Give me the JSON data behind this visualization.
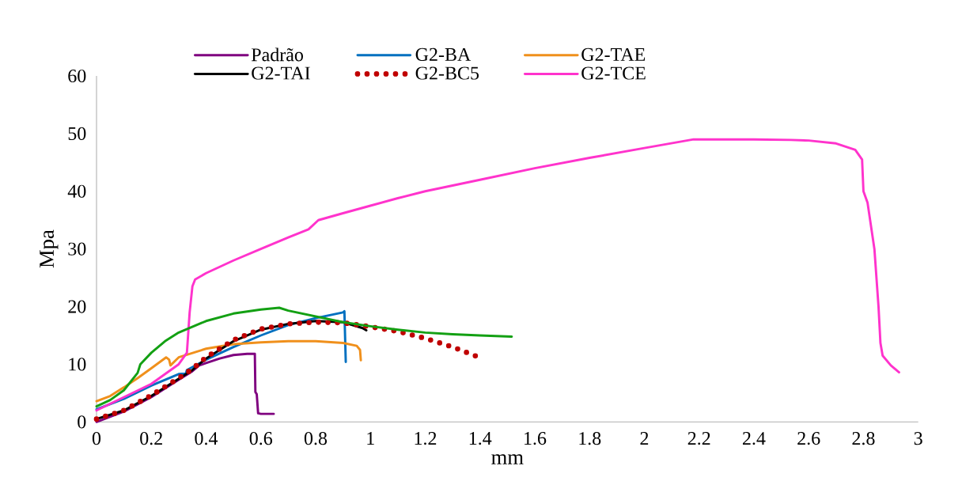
{
  "chart_data": {
    "type": "line",
    "xlabel": "mm",
    "ylabel": "Mpa",
    "xlim": [
      0,
      3
    ],
    "xticks": [
      0,
      0.2,
      0.4,
      0.6,
      0.8,
      1,
      1.2,
      1.4,
      1.6,
      1.8,
      2,
      2.2,
      2.4,
      2.6,
      2.8,
      3
    ],
    "ylim": [
      0,
      60
    ],
    "yticks": [
      0,
      10,
      20,
      30,
      40,
      50,
      60
    ],
    "grid": false,
    "legend": "top",
    "marker": "none",
    "line_style": "solid",
    "series": [
      {
        "name": "Padrão",
        "color": "#7f007f",
        "x": [
          0,
          0.1,
          0.2,
          0.3,
          0.35,
          0.375,
          0.4,
          0.45,
          0.5,
          0.55,
          0.578,
          0.58,
          0.585,
          0.59,
          0.6,
          0.647
        ],
        "values": [
          0,
          1.8,
          4.3,
          7.3,
          8.8,
          9.8,
          10.2,
          11,
          11.6,
          11.8,
          11.8,
          5.2,
          4.8,
          1.5,
          1.4,
          1.4
        ]
      },
      {
        "name": "G2-BA",
        "color": "#0070c0",
        "x": [
          0,
          0.1,
          0.2,
          0.3,
          0.326,
          0.33,
          0.4,
          0.5,
          0.6,
          0.7,
          0.8,
          0.9,
          0.905,
          0.91
        ],
        "values": [
          2.2,
          4,
          6.3,
          8.3,
          8.4,
          9,
          10.8,
          13,
          15,
          16.8,
          18,
          19,
          19.2,
          10.4
        ]
      },
      {
        "name": "G2-TAE",
        "color": "#f0901c",
        "x": [
          0,
          0.05,
          0.1,
          0.15,
          0.2,
          0.254,
          0.265,
          0.27,
          0.3,
          0.4,
          0.5,
          0.6,
          0.7,
          0.8,
          0.9,
          0.95,
          0.962,
          0.965
        ],
        "values": [
          3.6,
          4.5,
          6,
          7.6,
          9.3,
          11.2,
          10.8,
          9.8,
          11.2,
          12.7,
          13.5,
          13.8,
          14,
          14,
          13.7,
          13.2,
          12.5,
          10.7
        ]
      },
      {
        "name": "G2-TAI",
        "color": "#000000",
        "x": [
          0,
          0.1,
          0.2,
          0.3,
          0.35,
          0.4,
          0.5,
          0.6,
          0.7,
          0.8,
          0.9,
          0.97,
          0.985
        ],
        "values": [
          0.5,
          2,
          4.5,
          7.5,
          9,
          11,
          14,
          16,
          17,
          17.5,
          17.3,
          16.3,
          15.9
        ]
      },
      {
        "name": "G2-BC5",
        "color": "#c00000",
        "line_style": "dotted",
        "x": [
          0,
          0.1,
          0.2,
          0.3,
          0.35,
          0.4,
          0.5,
          0.6,
          0.7,
          0.8,
          0.9,
          1,
          1.1,
          1.2,
          1.3,
          1.386
        ],
        "values": [
          0.5,
          2,
          4.6,
          7.6,
          9.2,
          11.2,
          14.2,
          16.1,
          17,
          17.3,
          17.2,
          16.5,
          15.7,
          14.5,
          13,
          11.4
        ]
      },
      {
        "name": "G2-TCE",
        "color": "#ff33cc",
        "x": [
          0,
          0.1,
          0.2,
          0.3,
          0.33,
          0.34,
          0.35,
          0.36,
          0.4,
          0.5,
          0.6,
          0.7,
          0.774,
          0.81,
          0.9,
          1,
          1.1,
          1.2,
          1.4,
          1.5,
          1.6,
          1.8,
          2,
          2.18,
          2.4,
          2.535,
          2.6,
          2.7,
          2.77,
          2.795,
          2.8,
          2.815,
          2.84,
          2.855,
          2.862,
          2.87,
          2.9,
          2.93
        ],
        "values": [
          2,
          4.3,
          6.6,
          10,
          12,
          19,
          23.5,
          24.7,
          25.8,
          28,
          30,
          32,
          33.4,
          35,
          36.2,
          37.5,
          38.8,
          40,
          42,
          43,
          44,
          45.8,
          47.5,
          49,
          49,
          48.9,
          48.8,
          48.3,
          47.2,
          45.5,
          40,
          38,
          30,
          20,
          13.7,
          11.5,
          9.8,
          8.6
        ]
      },
      {
        "color": "#13a013",
        "x": [
          0,
          0.05,
          0.1,
          0.15,
          0.16,
          0.2,
          0.25,
          0.3,
          0.4,
          0.5,
          0.6,
          0.667,
          0.7,
          0.8,
          0.9,
          1,
          1.1,
          1.2,
          1.3,
          1.4,
          1.516
        ],
        "values": [
          2.7,
          3.8,
          5.5,
          8.5,
          10,
          12,
          14,
          15.5,
          17.5,
          18.8,
          19.5,
          19.8,
          19.3,
          18.3,
          17.3,
          16.6,
          16,
          15.5,
          15.2,
          15,
          14.8
        ]
      }
    ]
  }
}
